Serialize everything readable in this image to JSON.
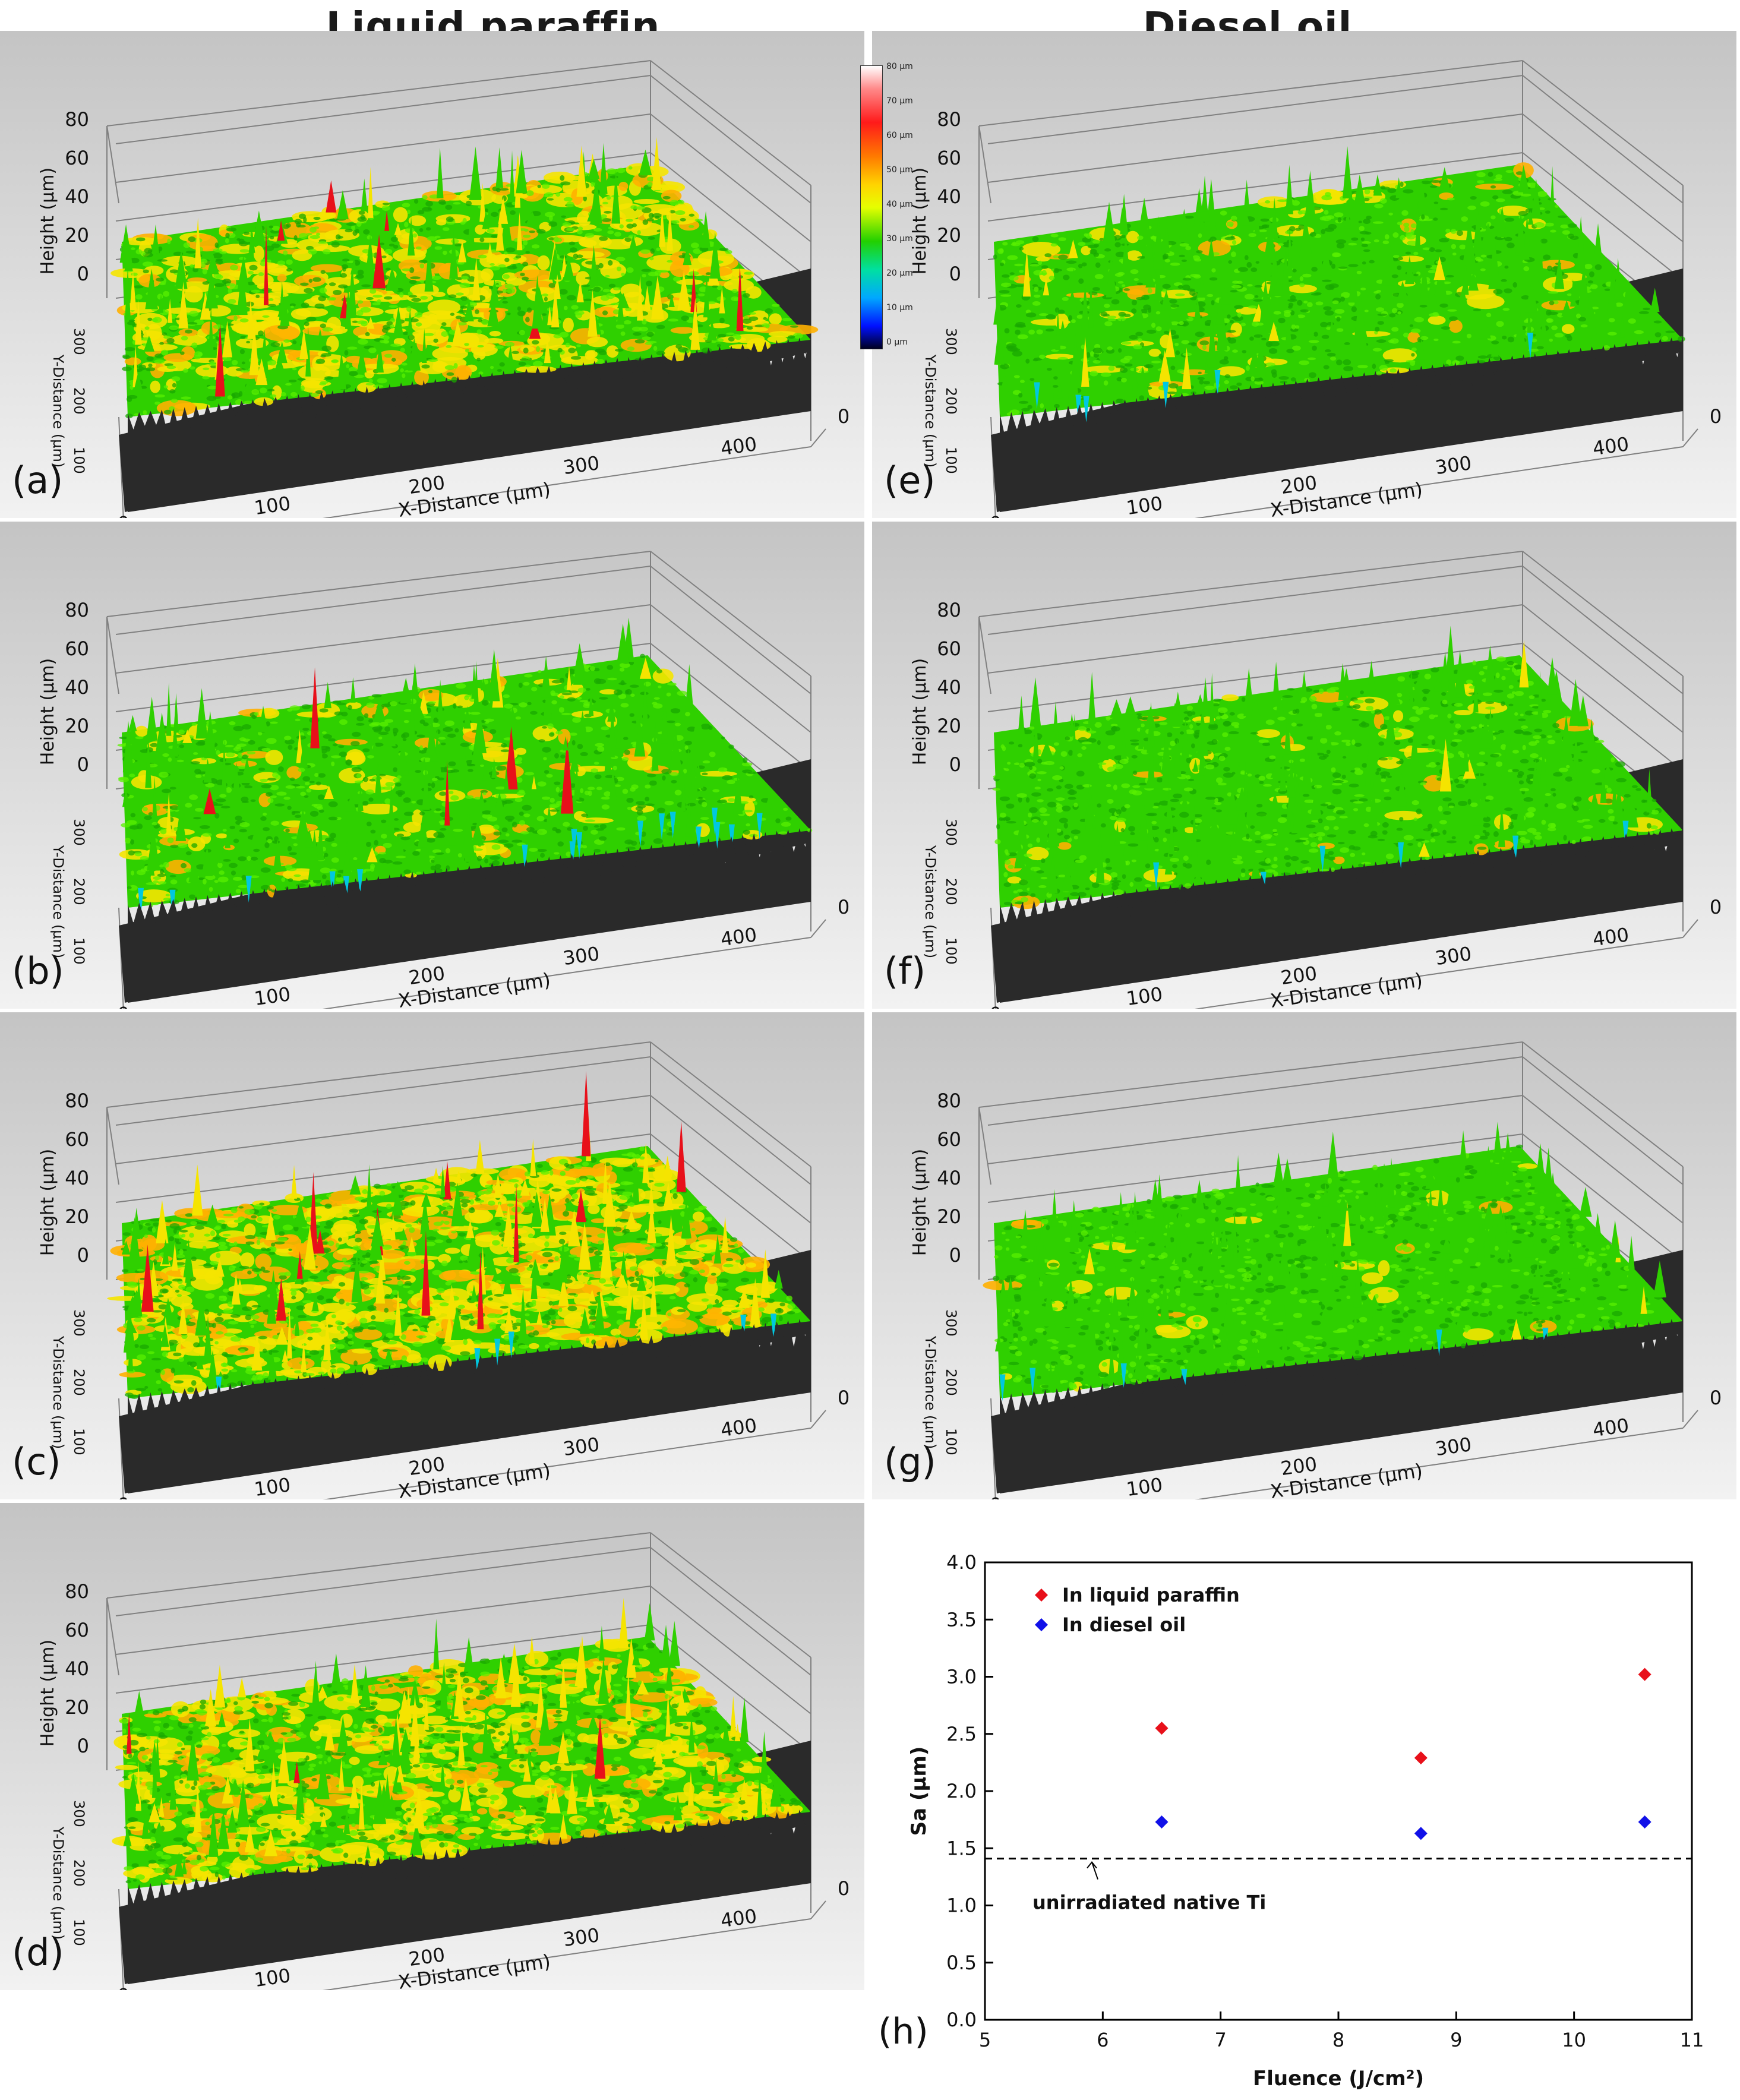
{
  "column_titles": {
    "left": "Liquid paraffin",
    "right": "Diesel oil"
  },
  "colors": {
    "green": "#2fd000",
    "yellow": "#f5e400",
    "orange": "#ffb000",
    "red": "#e8101a",
    "cyan": "#00c8e0",
    "base": "#2a2a2a",
    "panel_bg": "#cdcdcd",
    "grid": "#808080"
  },
  "surface_axes": {
    "z_label": "Height (µm)",
    "z_ticks": [
      "80",
      "60",
      "40",
      "20",
      "0"
    ],
    "y_label": "Y-Distance (µm)",
    "y_ticks": [
      "300",
      "200",
      "100",
      "0"
    ],
    "x_label": "X-Distance (µm)",
    "x_ticks": [
      "0",
      "100",
      "200",
      "300",
      "400"
    ],
    "x_far_tick": "0"
  },
  "color_scale": {
    "ticks": [
      "80 µm",
      "70 µm",
      "60 µm",
      "50 µm",
      "40 µm",
      "30 µm",
      "20 µm",
      "10 µm",
      "0 µm"
    ]
  },
  "panels": [
    {
      "id": "a",
      "label": "(a)",
      "liquid": "Liquid paraffin",
      "yellow_fraction": 0.45,
      "red_fraction": 0.08,
      "cyan_fraction": 0.0,
      "seed": 11
    },
    {
      "id": "b",
      "label": "(b)",
      "liquid": "Liquid paraffin",
      "yellow_fraction": 0.12,
      "red_fraction": 0.03,
      "cyan_fraction": 0.03,
      "seed": 23
    },
    {
      "id": "c",
      "label": "(c)",
      "liquid": "Liquid paraffin",
      "yellow_fraction": 0.6,
      "red_fraction": 0.1,
      "cyan_fraction": 0.01,
      "seed": 37
    },
    {
      "id": "d",
      "label": "(d)",
      "liquid": "Liquid paraffin",
      "yellow_fraction": 0.5,
      "red_fraction": 0.02,
      "cyan_fraction": 0.0,
      "seed": 41
    },
    {
      "id": "e",
      "label": "(e)",
      "liquid": "Diesel oil",
      "yellow_fraction": 0.08,
      "red_fraction": 0.0,
      "cyan_fraction": 0.01,
      "seed": 53
    },
    {
      "id": "f",
      "label": "(f)",
      "liquid": "Diesel oil",
      "yellow_fraction": 0.05,
      "red_fraction": 0.0,
      "cyan_fraction": 0.01,
      "seed": 67
    },
    {
      "id": "g",
      "label": "(g)",
      "liquid": "Diesel oil",
      "yellow_fraction": 0.03,
      "red_fraction": 0.0,
      "cyan_fraction": 0.01,
      "seed": 71
    }
  ],
  "chart_data": {
    "type": "scatter",
    "panel_label": "(h)",
    "xlabel": "Fluence (J/cm²)",
    "ylabel": "Sa (µm)",
    "xlim": [
      5,
      11
    ],
    "ylim": [
      0.0,
      4.0
    ],
    "x_ticks": [
      "5",
      "6",
      "7",
      "8",
      "9",
      "10",
      "11"
    ],
    "y_ticks": [
      "0.0",
      "0.5",
      "1.0",
      "1.5",
      "2.0",
      "2.5",
      "3.0",
      "3.5",
      "4.0"
    ],
    "series": [
      {
        "name": "In liquid paraffin",
        "color": "#e8101a",
        "marker": "diamond",
        "x": [
          6.5,
          8.7,
          10.6
        ],
        "y": [
          2.55,
          2.29,
          3.02
        ]
      },
      {
        "name": "In diesel oil",
        "color": "#1010e8",
        "marker": "diamond",
        "x": [
          6.5,
          8.7,
          10.6
        ],
        "y": [
          1.73,
          1.63,
          1.73
        ]
      }
    ],
    "reference_line": {
      "y": 1.41,
      "style": "dashed",
      "label": "unirradiated native Ti"
    },
    "legend_position": "top-left"
  }
}
